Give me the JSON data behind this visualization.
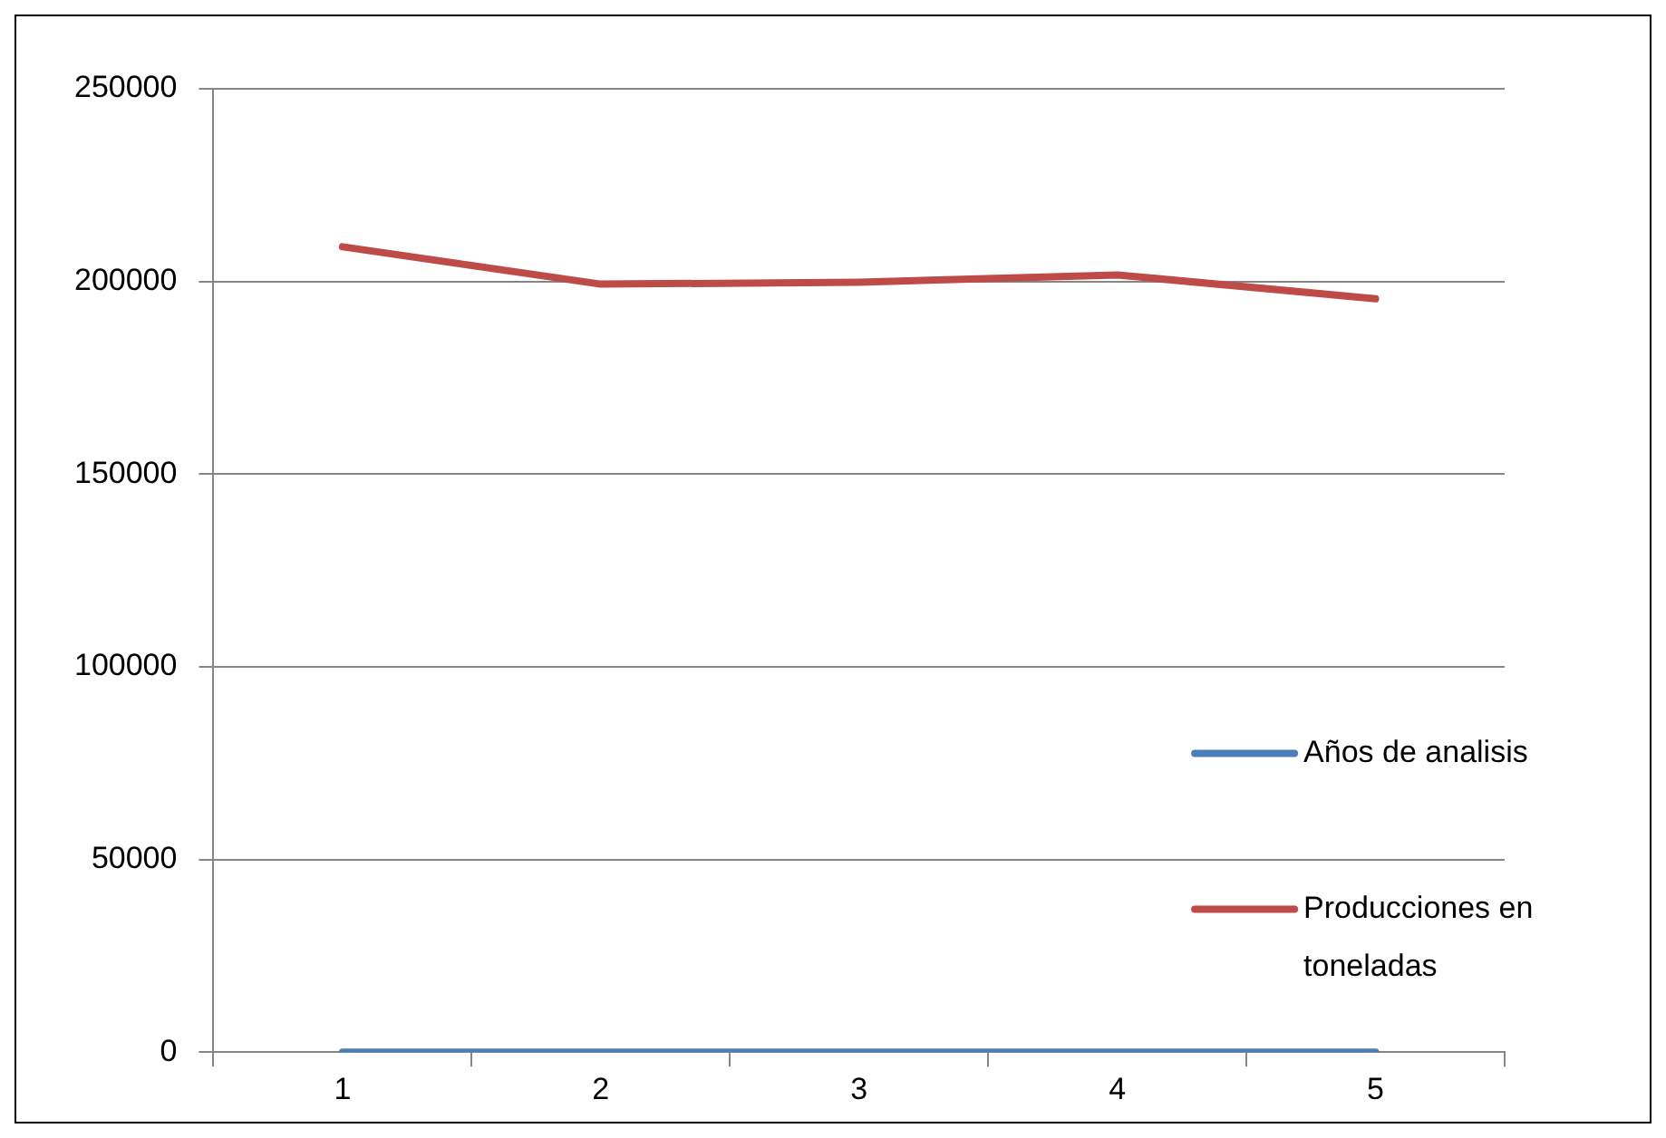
{
  "chart_data": {
    "type": "line",
    "categories": [
      "1",
      "2",
      "3",
      "4",
      "5"
    ],
    "series": [
      {
        "name": "Años de analisis",
        "color": "#4a7ebb",
        "values": [
          0,
          0,
          0,
          0,
          0
        ]
      },
      {
        "name": "Producciones en toneladas",
        "color": "#be4b48",
        "values": [
          209000,
          199300,
          199800,
          201700,
          195500
        ]
      }
    ],
    "ylim": [
      0,
      250000
    ],
    "yticks": [
      0,
      50000,
      100000,
      150000,
      200000,
      250000
    ],
    "grid": "y",
    "legend": "right",
    "marker": "none",
    "line_style": "solid"
  }
}
